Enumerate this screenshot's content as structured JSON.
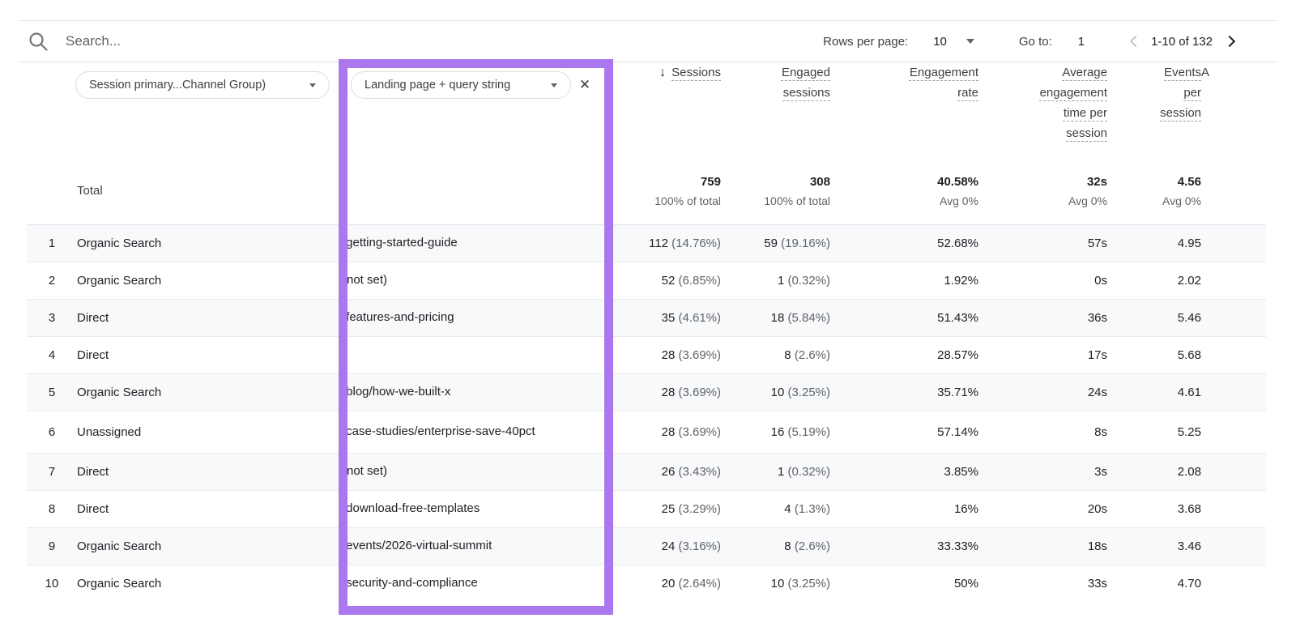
{
  "toolbar": {
    "search_placeholder": "Search...",
    "rows_per_page_label": "Rows per page:",
    "rows_per_page_value": "10",
    "go_to_label": "Go to:",
    "go_to_value": "1",
    "page_range": "1-10 of 132"
  },
  "filters": {
    "dimension_primary": "Session primary...Channel Group)",
    "dimension_secondary": "Landing page + query string"
  },
  "icons": {
    "close": "✕",
    "sort_descending": "↓"
  },
  "highlight": {
    "color": "#aa77ee"
  },
  "table": {
    "headers": {
      "sessions": "Sessions",
      "engaged_sessions": [
        "Engaged",
        "sessions"
      ],
      "engagement_rate": [
        "Engagement",
        "rate"
      ],
      "avg_engagement_time": [
        "Average",
        "engagement",
        "time per",
        "session"
      ],
      "events_per_session": [
        "Events",
        "per",
        "session"
      ],
      "next_column_partial": "A"
    },
    "total": {
      "label": "Total",
      "sessions": "759",
      "sessions_sub": "100% of total",
      "engaged": "308",
      "engaged_sub": "100% of total",
      "rate": "40.58%",
      "rate_sub": "Avg 0%",
      "avg_time": "32s",
      "avg_time_sub": "Avg 0%",
      "events": "4.56",
      "events_sub": "Avg 0%"
    },
    "rows": [
      {
        "num": "1",
        "channel": "Organic Search",
        "landing_page": "/getting-started-guide",
        "sessions": "112",
        "sessions_pct": "(14.76%)",
        "engaged": "59",
        "engaged_pct": "(19.16%)",
        "rate": "52.68%",
        "avg_time": "57s",
        "events": "4.95"
      },
      {
        "num": "2",
        "channel": "Organic Search",
        "landing_page": "(not set)",
        "sessions": "52",
        "sessions_pct": "(6.85%)",
        "engaged": "1",
        "engaged_pct": "(0.32%)",
        "rate": "1.92%",
        "avg_time": "0s",
        "events": "2.02"
      },
      {
        "num": "3",
        "channel": "Direct",
        "landing_page": "/features-and-pricing",
        "sessions": "35",
        "sessions_pct": "(4.61%)",
        "engaged": "18",
        "engaged_pct": "(5.84%)",
        "rate": "51.43%",
        "avg_time": "36s",
        "events": "5.46"
      },
      {
        "num": "4",
        "channel": "Direct",
        "landing_page": "/",
        "sessions": "28",
        "sessions_pct": "(3.69%)",
        "engaged": "8",
        "engaged_pct": "(2.6%)",
        "rate": "28.57%",
        "avg_time": "17s",
        "events": "5.68"
      },
      {
        "num": "5",
        "channel": "Organic Search",
        "landing_page": "/blog/how-we-built-x",
        "sessions": "28",
        "sessions_pct": "(3.69%)",
        "engaged": "10",
        "engaged_pct": "(3.25%)",
        "rate": "35.71%",
        "avg_time": "24s",
        "events": "4.61"
      },
      {
        "num": "6",
        "channel": "Unassigned",
        "landing_page": "/case-studies/enterprise-save-40pct",
        "sessions": "28",
        "sessions_pct": "(3.69%)",
        "engaged": "16",
        "engaged_pct": "(5.19%)",
        "rate": "57.14%",
        "avg_time": "8s",
        "events": "5.25"
      },
      {
        "num": "7",
        "channel": "Direct",
        "landing_page": "(not set)",
        "sessions": "26",
        "sessions_pct": "(3.43%)",
        "engaged": "1",
        "engaged_pct": "(0.32%)",
        "rate": "3.85%",
        "avg_time": "3s",
        "events": "2.08"
      },
      {
        "num": "8",
        "channel": "Direct",
        "landing_page": "/download-free-templates",
        "sessions": "25",
        "sessions_pct": "(3.29%)",
        "engaged": "4",
        "engaged_pct": "(1.3%)",
        "rate": "16%",
        "avg_time": "20s",
        "events": "3.68"
      },
      {
        "num": "9",
        "channel": "Organic Search",
        "landing_page": "/events/2026-virtual-summit",
        "sessions": "24",
        "sessions_pct": "(3.16%)",
        "engaged": "8",
        "engaged_pct": "(2.6%)",
        "rate": "33.33%",
        "avg_time": "18s",
        "events": "3.46"
      },
      {
        "num": "10",
        "channel": "Organic Search",
        "landing_page": "/security-and-compliance",
        "sessions": "20",
        "sessions_pct": "(2.64%)",
        "engaged": "10",
        "engaged_pct": "(3.25%)",
        "rate": "50%",
        "avg_time": "33s",
        "events": "4.70"
      }
    ]
  }
}
